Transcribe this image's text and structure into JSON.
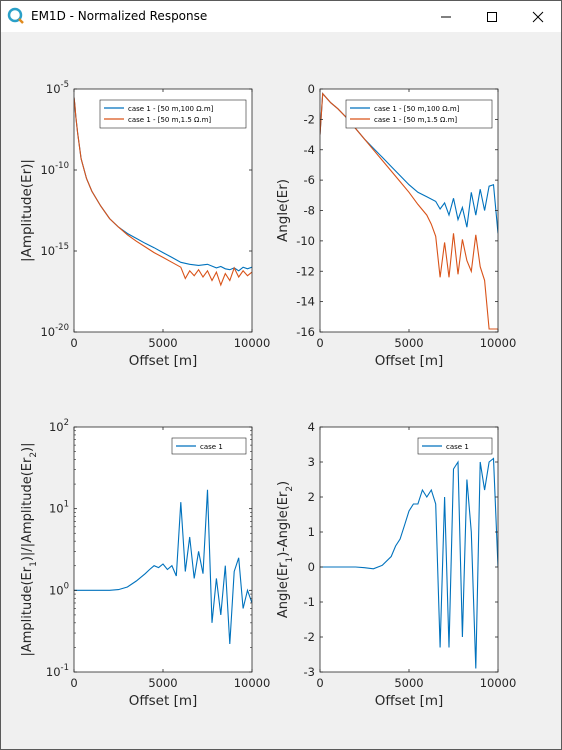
{
  "window": {
    "title": "EM1D - Normalized Response",
    "icon": "app-logo-icon",
    "controls": [
      "minimize-icon",
      "maximize-icon",
      "close-icon"
    ]
  },
  "colors": {
    "series1": "#0072BD",
    "series2": "#D95319",
    "axes": "#262626",
    "plot_bg": "#ffffff",
    "figure_bg": "#f0f0f0"
  },
  "chart_data": [
    {
      "type": "line",
      "xlabel": "Offset [m]",
      "ylabel": "|Amplitude(Er)|",
      "xlim": [
        0,
        10000
      ],
      "ylim": [
        1e-20,
        1e-05
      ],
      "yscale": "log",
      "xticks": [
        0,
        5000,
        10000
      ],
      "yticks": [
        1e-20,
        1e-15,
        1e-10,
        1e-05
      ],
      "xtick_labels": [
        "0",
        "5000",
        "10000"
      ],
      "ytick_labels": [
        [
          "10",
          "-20"
        ],
        [
          "10",
          "-15"
        ],
        [
          "10",
          "-10"
        ],
        [
          "10",
          "-5"
        ]
      ],
      "legend_position": "top-right",
      "series": [
        {
          "name": "case 1 - [50 m,100 Ω.m]",
          "x": [
            0,
            50,
            100,
            200,
            400,
            700,
            1000,
            1500,
            2000,
            2500,
            3000,
            3500,
            4000,
            4500,
            5000,
            5500,
            6000,
            6500,
            7000,
            7500,
            8000,
            8250,
            8500,
            8750,
            9000,
            9250,
            9500,
            9750,
            10000
          ],
          "y": [
            3e-06,
            1e-06,
            2e-07,
            2e-08,
            5e-10,
            3e-11,
            5e-12,
            6e-13,
            1e-13,
            3e-14,
            1.2e-14,
            6e-15,
            3e-15,
            1.6e-15,
            8e-16,
            4e-16,
            2e-16,
            1.5e-16,
            1.3e-16,
            1.5e-16,
            9e-17,
            1.1e-16,
            8e-17,
            7e-17,
            9e-17,
            6e-17,
            1e-16,
            8e-17,
            1e-16
          ]
        },
        {
          "name": "case 1 - [50 m,1.5 Ω.m]",
          "x": [
            0,
            50,
            100,
            200,
            400,
            700,
            1000,
            1500,
            2000,
            2500,
            3000,
            3500,
            4000,
            4500,
            5000,
            5500,
            6000,
            6250,
            6500,
            6750,
            7000,
            7250,
            7500,
            7750,
            8000,
            8250,
            8500,
            8750,
            9000,
            9250,
            9500,
            9750,
            10000
          ],
          "y": [
            3e-06,
            1e-06,
            2e-07,
            2e-08,
            5e-10,
            3e-11,
            5e-12,
            6e-13,
            1e-13,
            3e-14,
            1e-14,
            4e-15,
            1.8e-15,
            8e-16,
            4e-16,
            2e-16,
            1e-16,
            2e-17,
            6e-17,
            3e-17,
            7e-17,
            2.5e-17,
            6e-17,
            1.5e-17,
            5e-17,
            8e-18,
            4e-17,
            1.5e-17,
            9e-17,
            2.5e-17,
            6e-17,
            3e-17,
            5e-17
          ]
        }
      ]
    },
    {
      "type": "line",
      "xlabel": "Offset [m]",
      "ylabel": "Angle(Er)",
      "xlim": [
        0,
        10000
      ],
      "ylim": [
        -16,
        0
      ],
      "xticks": [
        0,
        5000,
        10000
      ],
      "yticks": [
        -16,
        -14,
        -12,
        -10,
        -8,
        -6,
        -4,
        -2,
        0
      ],
      "xtick_labels": [
        "0",
        "5000",
        "10000"
      ],
      "ytick_labels": [
        "-16",
        "-14",
        "-12",
        "-10",
        "-8",
        "-6",
        "-4",
        "-2",
        "0"
      ],
      "legend_position": "top-right",
      "series": [
        {
          "name": "case 1 - [50 m,100 Ω.m]",
          "x": [
            0,
            150,
            300,
            600,
            1000,
            1500,
            2000,
            2500,
            3000,
            3500,
            4000,
            4500,
            5000,
            5500,
            6000,
            6500,
            6750,
            7000,
            7250,
            7500,
            7750,
            8000,
            8250,
            8500,
            8750,
            9000,
            9250,
            9500,
            9750,
            10000
          ],
          "y": [
            -3.0,
            -0.3,
            -0.5,
            -0.9,
            -1.3,
            -1.9,
            -2.6,
            -3.3,
            -3.9,
            -4.5,
            -5.1,
            -5.7,
            -6.3,
            -6.8,
            -7.1,
            -7.4,
            -7.9,
            -7.5,
            -8.3,
            -7.2,
            -8.6,
            -7.8,
            -9.1,
            -6.8,
            -8.3,
            -6.6,
            -8.0,
            -6.4,
            -6.3,
            -9.5
          ]
        },
        {
          "name": "case 1 - [50 m,1.5 Ω.m]",
          "x": [
            0,
            150,
            300,
            600,
            1000,
            1500,
            2000,
            2500,
            3000,
            3500,
            4000,
            4500,
            5000,
            5500,
            6000,
            6250,
            6500,
            6750,
            7000,
            7250,
            7500,
            7750,
            8000,
            8250,
            8500,
            8750,
            9000,
            9250,
            9500,
            9750,
            10000
          ],
          "y": [
            -3.0,
            -0.3,
            -0.5,
            -0.9,
            -1.3,
            -1.9,
            -2.6,
            -3.3,
            -4.0,
            -4.7,
            -5.4,
            -6.1,
            -6.8,
            -7.6,
            -8.3,
            -8.9,
            -9.7,
            -12.4,
            -10.1,
            -12.4,
            -9.5,
            -12.2,
            -9.9,
            -11.3,
            -12.0,
            -9.6,
            -11.7,
            -12.6,
            -15.8,
            -15.8,
            -15.8
          ]
        }
      ]
    },
    {
      "type": "line",
      "xlabel": "Offset [m]",
      "ylabel": "|Amplitude(Er1)|/|Amplitude(Er2)|",
      "xlim": [
        0,
        10000
      ],
      "ylim": [
        0.1,
        100
      ],
      "yscale": "log",
      "xticks": [
        0,
        5000,
        10000
      ],
      "yticks": [
        0.1,
        1,
        10,
        100
      ],
      "xtick_labels": [
        "0",
        "5000",
        "10000"
      ],
      "ytick_labels": [
        [
          "10",
          "-1"
        ],
        [
          "10",
          "0"
        ],
        [
          "10",
          "1"
        ],
        [
          "10",
          "2"
        ]
      ],
      "legend_position": "top-right",
      "series": [
        {
          "name": "case 1",
          "x": [
            0,
            1000,
            2000,
            2500,
            3000,
            3500,
            4000,
            4250,
            4500,
            4750,
            5000,
            5250,
            5500,
            5750,
            6000,
            6250,
            6500,
            6750,
            7000,
            7250,
            7500,
            7750,
            8000,
            8250,
            8500,
            8750,
            9000,
            9250,
            9500,
            9750,
            10000
          ],
          "y": [
            1.0,
            1.0,
            1.0,
            1.02,
            1.1,
            1.3,
            1.6,
            1.8,
            2.0,
            1.9,
            2.1,
            1.8,
            2.0,
            1.5,
            12,
            1.7,
            4.5,
            1.4,
            3.0,
            1.6,
            17,
            0.4,
            1.4,
            0.5,
            2.0,
            0.22,
            1.7,
            2.5,
            0.6,
            1.0,
            0.7
          ]
        }
      ]
    },
    {
      "type": "line",
      "xlabel": "Offset [m]",
      "ylabel": "Angle(Er1)-Angle(Er2)",
      "xlim": [
        0,
        10000
      ],
      "ylim": [
        -3,
        4
      ],
      "xticks": [
        0,
        5000,
        10000
      ],
      "yticks": [
        -3,
        -2,
        -1,
        0,
        1,
        2,
        3,
        4
      ],
      "xtick_labels": [
        "0",
        "5000",
        "10000"
      ],
      "ytick_labels": [
        "-3",
        "-2",
        "-1",
        "0",
        "1",
        "2",
        "3",
        "4"
      ],
      "legend_position": "top-right",
      "series": [
        {
          "name": "case 1",
          "x": [
            0,
            1000,
            2000,
            2500,
            3000,
            3500,
            4000,
            4250,
            4500,
            4750,
            5000,
            5250,
            5500,
            5750,
            6000,
            6250,
            6500,
            6750,
            7000,
            7250,
            7500,
            7750,
            8000,
            8250,
            8500,
            8750,
            9000,
            9250,
            9500,
            9750,
            10000
          ],
          "y": [
            0,
            0,
            0,
            -0.02,
            -0.05,
            0.05,
            0.3,
            0.6,
            0.8,
            1.2,
            1.6,
            1.8,
            1.8,
            2.2,
            2.0,
            2.2,
            1.8,
            -2.3,
            2.0,
            -2.3,
            2.8,
            3.0,
            -2.0,
            2.5,
            1.0,
            -2.9,
            3.0,
            2.2,
            3.0,
            3.1,
            0.0
          ]
        }
      ]
    }
  ]
}
